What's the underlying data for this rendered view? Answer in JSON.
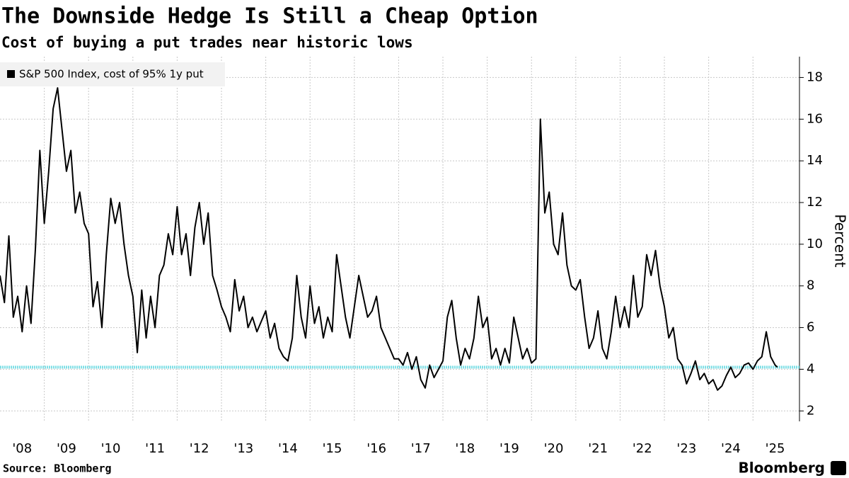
{
  "chart_data": {
    "type": "line",
    "title": "The Downside Hedge Is Still a Cheap Option",
    "subtitle": "Cost of buying a put trades near historic lows",
    "y_label": "Percent",
    "source": "Source: Bloomberg",
    "brand": "Bloomberg",
    "x": [
      2008.0,
      2008.1,
      2008.2,
      2008.3,
      2008.4,
      2008.5,
      2008.6,
      2008.7,
      2008.8,
      2008.9,
      2009.0,
      2009.1,
      2009.2,
      2009.3,
      2009.4,
      2009.5,
      2009.6,
      2009.7,
      2009.8,
      2009.9,
      2010.0,
      2010.1,
      2010.2,
      2010.3,
      2010.4,
      2010.5,
      2010.6,
      2010.7,
      2010.8,
      2010.9,
      2011.0,
      2011.1,
      2011.2,
      2011.3,
      2011.4,
      2011.5,
      2011.6,
      2011.7,
      2011.8,
      2011.9,
      2012.0,
      2012.1,
      2012.2,
      2012.3,
      2012.4,
      2012.5,
      2012.6,
      2012.7,
      2012.8,
      2012.9,
      2013.0,
      2013.1,
      2013.2,
      2013.3,
      2013.4,
      2013.5,
      2013.6,
      2013.7,
      2013.8,
      2013.9,
      2014.0,
      2014.1,
      2014.2,
      2014.3,
      2014.4,
      2014.5,
      2014.6,
      2014.7,
      2014.8,
      2014.9,
      2015.0,
      2015.1,
      2015.2,
      2015.3,
      2015.4,
      2015.5,
      2015.6,
      2015.7,
      2015.8,
      2015.9,
      2016.0,
      2016.1,
      2016.2,
      2016.3,
      2016.4,
      2016.5,
      2016.6,
      2016.7,
      2016.8,
      2016.9,
      2017.0,
      2017.1,
      2017.2,
      2017.3,
      2017.4,
      2017.5,
      2017.6,
      2017.7,
      2017.8,
      2017.9,
      2018.0,
      2018.1,
      2018.2,
      2018.3,
      2018.4,
      2018.5,
      2018.6,
      2018.7,
      2018.8,
      2018.9,
      2019.0,
      2019.1,
      2019.2,
      2019.3,
      2019.4,
      2019.5,
      2019.6,
      2019.7,
      2019.8,
      2019.9,
      2020.0,
      2020.1,
      2020.2,
      2020.3,
      2020.4,
      2020.5,
      2020.6,
      2020.7,
      2020.8,
      2020.9,
      2021.0,
      2021.1,
      2021.2,
      2021.3,
      2021.4,
      2021.5,
      2021.6,
      2021.7,
      2021.8,
      2021.9,
      2022.0,
      2022.1,
      2022.2,
      2022.3,
      2022.4,
      2022.5,
      2022.6,
      2022.7,
      2022.8,
      2022.9,
      2023.0,
      2023.1,
      2023.2,
      2023.3,
      2023.4,
      2023.5,
      2023.6,
      2023.7,
      2023.8,
      2023.9,
      2024.0,
      2024.1,
      2024.2,
      2024.3,
      2024.4,
      2024.5,
      2024.6,
      2024.7,
      2024.8,
      2024.9,
      2025.0,
      2025.1,
      2025.2,
      2025.3,
      2025.4,
      2025.5,
      2025.55
    ],
    "series": [
      {
        "name": "S&P 500 Index, cost of 95% 1y put",
        "color": "#000000",
        "values": [
          8.5,
          7.2,
          10.4,
          6.5,
          7.5,
          5.8,
          8.0,
          6.2,
          9.8,
          14.5,
          11.0,
          13.5,
          16.5,
          17.5,
          15.5,
          13.5,
          14.5,
          11.5,
          12.5,
          11.0,
          10.5,
          7.0,
          8.2,
          6.0,
          9.5,
          12.2,
          11.0,
          12.0,
          10.0,
          8.5,
          7.5,
          4.8,
          7.8,
          5.5,
          7.5,
          6.0,
          8.5,
          9.0,
          10.5,
          9.5,
          11.8,
          9.5,
          10.5,
          8.5,
          10.8,
          12.0,
          10.0,
          11.5,
          8.5,
          7.8,
          7.0,
          6.5,
          5.8,
          8.3,
          6.8,
          7.5,
          6.0,
          6.5,
          5.8,
          6.3,
          6.8,
          5.5,
          6.2,
          5.0,
          4.6,
          4.4,
          5.5,
          8.5,
          6.5,
          5.5,
          8.0,
          6.2,
          7.0,
          5.5,
          6.5,
          5.8,
          9.5,
          8.0,
          6.5,
          5.5,
          7.0,
          8.5,
          7.5,
          6.5,
          6.8,
          7.5,
          6.0,
          5.5,
          5.0,
          4.5,
          4.5,
          4.2,
          4.8,
          4.0,
          4.6,
          3.5,
          3.1,
          4.2,
          3.6,
          4.0,
          4.4,
          6.5,
          7.3,
          5.5,
          4.2,
          5.0,
          4.5,
          5.5,
          7.5,
          6.0,
          6.5,
          4.5,
          5.0,
          4.2,
          5.0,
          4.3,
          6.5,
          5.5,
          4.5,
          5.0,
          4.3,
          4.5,
          16.0,
          11.5,
          12.5,
          10.0,
          9.5,
          11.5,
          9.0,
          8.0,
          7.8,
          8.3,
          6.5,
          5.0,
          5.5,
          6.8,
          5.0,
          4.5,
          5.8,
          7.5,
          6.0,
          7.0,
          6.0,
          8.5,
          6.5,
          7.0,
          9.5,
          8.5,
          9.7,
          8.0,
          7.0,
          5.5,
          6.0,
          4.5,
          4.2,
          3.3,
          3.8,
          4.4,
          3.5,
          3.8,
          3.3,
          3.5,
          3.0,
          3.2,
          3.7,
          4.1,
          3.6,
          3.8,
          4.2,
          4.3,
          4.0,
          4.4,
          4.6,
          5.8,
          4.6,
          4.2,
          4.1
        ]
      }
    ],
    "reference_line": {
      "value": 4.1,
      "color": "#7fdfe6"
    },
    "xlim": [
      2008.0,
      2026.05
    ],
    "xticks": [
      {
        "value": 2008.5,
        "label": "'08"
      },
      {
        "value": 2009.5,
        "label": "'09"
      },
      {
        "value": 2010.5,
        "label": "'10"
      },
      {
        "value": 2011.5,
        "label": "'11"
      },
      {
        "value": 2012.5,
        "label": "'12"
      },
      {
        "value": 2013.5,
        "label": "'13"
      },
      {
        "value": 2014.5,
        "label": "'14"
      },
      {
        "value": 2015.5,
        "label": "'15"
      },
      {
        "value": 2016.5,
        "label": "'16"
      },
      {
        "value": 2017.5,
        "label": "'17"
      },
      {
        "value": 2018.5,
        "label": "'18"
      },
      {
        "value": 2019.5,
        "label": "'19"
      },
      {
        "value": 2020.5,
        "label": "'20"
      },
      {
        "value": 2021.5,
        "label": "'21"
      },
      {
        "value": 2022.5,
        "label": "'22"
      },
      {
        "value": 2023.5,
        "label": "'23"
      },
      {
        "value": 2024.5,
        "label": "'24"
      },
      {
        "value": 2025.5,
        "label": "'25"
      }
    ],
    "ylim": [
      1.5,
      19
    ],
    "yticks": [
      2,
      4,
      6,
      8,
      10,
      12,
      14,
      16,
      18
    ],
    "grid": true
  }
}
